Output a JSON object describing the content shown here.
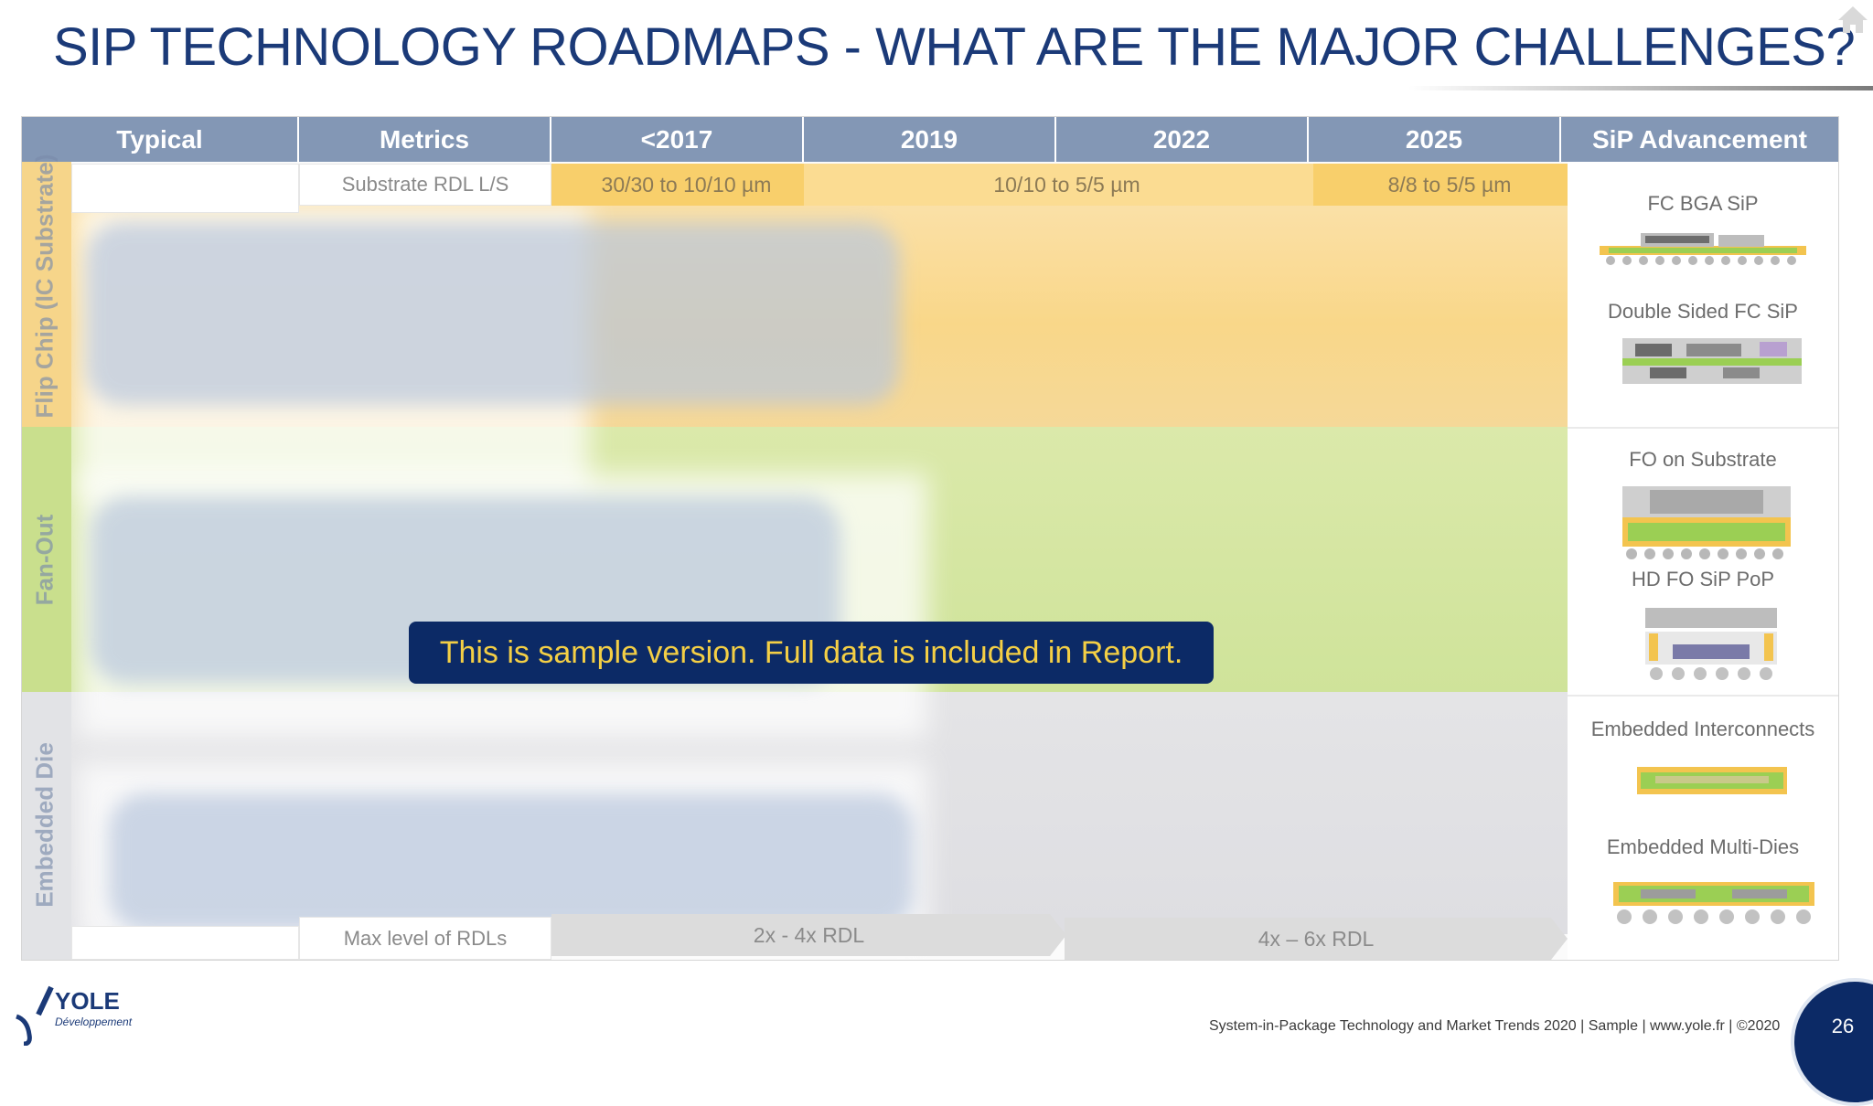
{
  "title": "SIP TECHNOLOGY ROADMAPS - WHAT ARE THE MAJOR CHALLENGES?",
  "header": [
    "Typical",
    "Metrics",
    "<2017",
    "2019",
    "2022",
    "2025",
    "SiP Advancement"
  ],
  "side_labels": [
    "Flip Chip (IC Substrate)",
    "Fan-Out",
    "Embedded Die"
  ],
  "rows": {
    "top": {
      "metric": "Substrate RDL L/S",
      "arrows": [
        "30/30 to 10/10 µm",
        "10/10 to 5/5 µm",
        "8/8 to 5/5 µm"
      ]
    },
    "bottom": {
      "metric": "Max level of RDLs",
      "arrows": [
        "2x - 4x RDL",
        "4x – 6x RDL"
      ]
    }
  },
  "advancements": [
    "FC BGA SiP",
    "Double Sided FC SiP",
    "FO on Substrate",
    "HD FO SiP PoP",
    "Embedded Interconnects",
    "Embedded Multi-Dies"
  ],
  "watermark": "This is sample version. Full data is included in Report.",
  "logo": {
    "brand": "YOLE",
    "sub": "Développement"
  },
  "footer": "System-in-Package Technology and Market Trends 2020 | Sample | www.yole.fr | ©2020",
  "page_number": "26",
  "colors": {
    "title": "#1b3a78",
    "header_bg": "#8397b5",
    "watermark_bg": "#0c2a66",
    "watermark_text": "#f4cf45",
    "flip_chip": "#f8cf6b",
    "fan_out": "#cfe39a",
    "embedded": "#dedee2"
  }
}
